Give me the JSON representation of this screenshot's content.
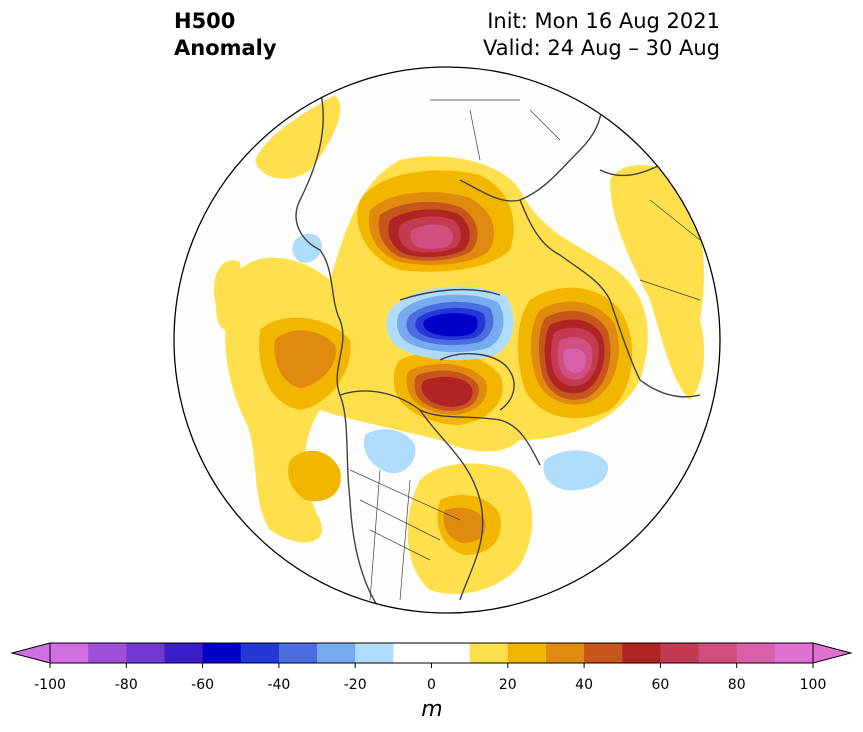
{
  "title": {
    "line1": "H500",
    "line2": "Anomaly"
  },
  "init": {
    "line1": "Init: Mon 16 Aug 2021",
    "line2": "Valid: 24 Aug – 30 Aug"
  },
  "colorbar": {
    "unit_label": "m",
    "ticks": [
      "-100",
      "-80",
      "-60",
      "-40",
      "-20",
      "0",
      "20",
      "40",
      "60",
      "80",
      "100"
    ],
    "min": -100,
    "max": 100,
    "step": 10,
    "bin_colors": [
      "#d070e0",
      "#a050d8",
      "#7038d0",
      "#3c1ec8",
      "#0000c8",
      "#2438d8",
      "#4c6ce0",
      "#78aaf0",
      "#b0dcfc",
      "#ffffff",
      "#ffffff",
      "#ffe04c",
      "#f2b600",
      "#e08a10",
      "#c6561c",
      "#b02424",
      "#c43a50",
      "#d04e80",
      "#d860a8",
      "#e070d0"
    ],
    "under_color": "#d070e0",
    "over_color": "#e070d0"
  },
  "colors": {
    "land_outline": "#404040",
    "boundary": "#000000"
  }
}
